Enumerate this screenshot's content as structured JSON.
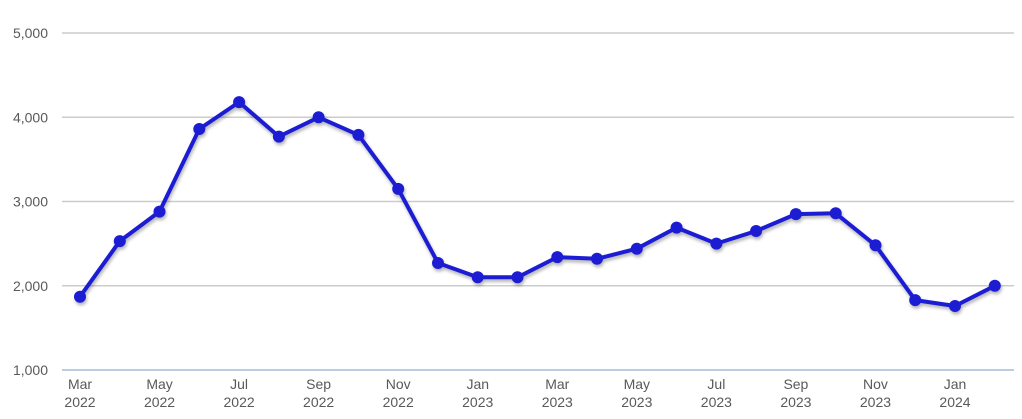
{
  "chart_style": {
    "background": "#ffffff",
    "line_color": "#1d1dd3",
    "marker_color": "#1d1dd3",
    "gridline_color": "#cccccc",
    "baseline_color": "#bccde2",
    "label_color": "#595959",
    "line_width": 4,
    "marker_radius": 6
  },
  "chart_data": {
    "type": "line",
    "title": "",
    "xlabel": "",
    "ylabel": "",
    "legend": "none",
    "grid": true,
    "marker": "circle",
    "ylim": [
      1000,
      5000
    ],
    "y_ticks": [
      1000,
      2000,
      3000,
      4000,
      5000
    ],
    "y_tick_labels": [
      "1,000",
      "2,000",
      "3,000",
      "4,000",
      "5,000"
    ],
    "x_tick_every": 2,
    "x": [
      "Mar 2022",
      "Apr 2022",
      "May 2022",
      "Jun 2022",
      "Jul 2022",
      "Aug 2022",
      "Sep 2022",
      "Oct 2022",
      "Nov 2022",
      "Dec 2022",
      "Jan 2023",
      "Feb 2023",
      "Mar 2023",
      "Apr 2023",
      "May 2023",
      "Jun 2023",
      "Jul 2023",
      "Aug 2023",
      "Sep 2023",
      "Oct 2023",
      "Nov 2023",
      "Dec 2023",
      "Jan 2024",
      "Feb 2024"
    ],
    "values": [
      1870,
      2530,
      2880,
      3860,
      4180,
      3770,
      4000,
      3790,
      3150,
      2270,
      2100,
      2100,
      2340,
      2320,
      2440,
      2690,
      2500,
      2650,
      2850,
      2860,
      2480,
      1830,
      1760,
      2000
    ]
  }
}
